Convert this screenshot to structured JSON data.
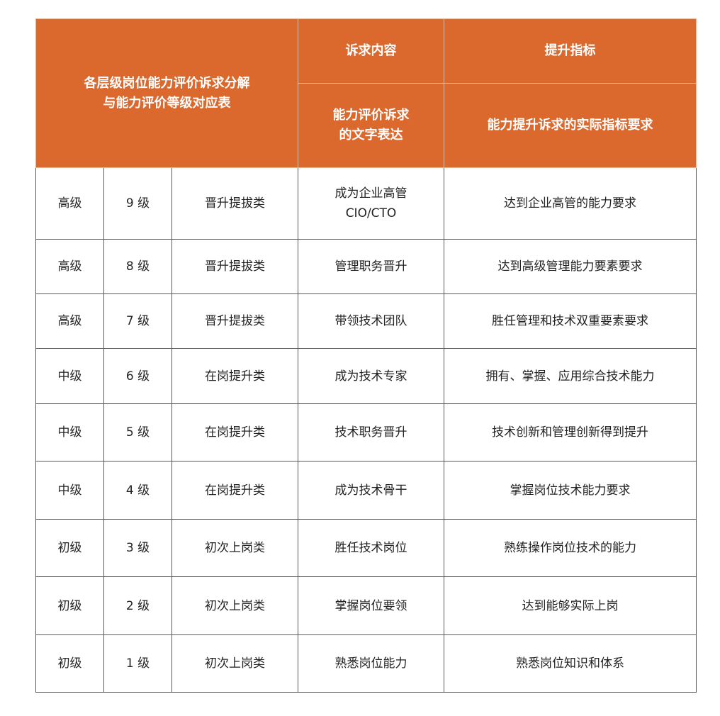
{
  "header": {
    "title": "各层级岗位能力评价诉求分解\n与能力评价等级对应表",
    "title_line1": "各层级岗位能力评价诉求分解",
    "title_line2": "与能力评价等级对应表",
    "col4_top": "诉求内容",
    "col5_top": "提升指标",
    "col4_sub_line1": "能力评价诉求",
    "col4_sub_line2": "的文字表达",
    "col5_sub": "能力提升诉求的实际指标要求"
  },
  "colors": {
    "header_bg": "#DB682D",
    "header_text": "#FFFFFF"
  },
  "rows": [
    {
      "tier": "高级",
      "level": "9 级",
      "category": "晋升提拔类",
      "appeal": "成为企业高管",
      "appeal2": "CIO/CTO",
      "indicator": "达到企业高管的能力要求"
    },
    {
      "tier": "高级",
      "level": "8 级",
      "category": "晋升提拔类",
      "appeal": "管理职务晋升",
      "appeal2": "",
      "indicator": "达到高级管理能力要素要求"
    },
    {
      "tier": "高级",
      "level": "7 级",
      "category": "晋升提拔类",
      "appeal": "带领技术团队",
      "appeal2": "",
      "indicator": "胜任管理和技术双重要素要求"
    },
    {
      "tier": "中级",
      "level": "6 级",
      "category": "在岗提升类",
      "appeal": "成为技术专家",
      "appeal2": "",
      "indicator": "拥有、掌握、应用综合技术能力"
    },
    {
      "tier": "中级",
      "level": "5 级",
      "category": "在岗提升类",
      "appeal": "技术职务晋升",
      "appeal2": "",
      "indicator": "技术创新和管理创新得到提升"
    },
    {
      "tier": "中级",
      "level": "4 级",
      "category": "在岗提升类",
      "appeal": "成为技术骨干",
      "appeal2": "",
      "indicator": "掌握岗位技术能力要求"
    },
    {
      "tier": "初级",
      "level": "3 级",
      "category": "初次上岗类",
      "appeal": "胜任技术岗位",
      "appeal2": "",
      "indicator": "熟练操作岗位技术的能力"
    },
    {
      "tier": "初级",
      "level": "2 级",
      "category": "初次上岗类",
      "appeal": "掌握岗位要领",
      "appeal2": "",
      "indicator": "达到能够实际上岗"
    },
    {
      "tier": "初级",
      "level": "1 级",
      "category": "初次上岗类",
      "appeal": "熟悉岗位能力",
      "appeal2": "",
      "indicator": "熟悉岗位知识和体系"
    }
  ]
}
